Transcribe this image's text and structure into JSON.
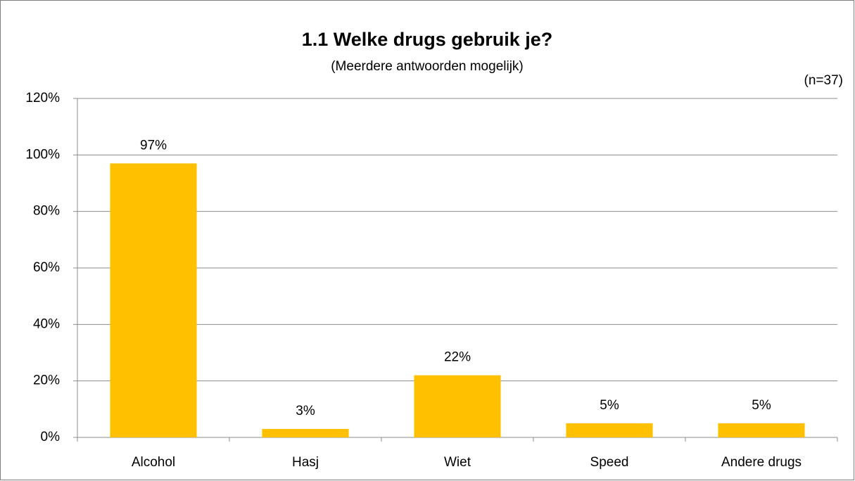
{
  "chart_data": {
    "type": "bar",
    "title": "1.1 Welke drugs gebruik je?",
    "subtitle": "(Meerdere antwoorden mogelijk)",
    "annotation": "(n=37)",
    "categories": [
      "Alcohol",
      "Hasj",
      "Wiet",
      "Speed",
      "Andere drugs"
    ],
    "values": [
      97,
      3,
      22,
      5,
      5
    ],
    "value_labels": [
      "97%",
      "3%",
      "22%",
      "5%",
      "5%"
    ],
    "color": "#ffc000",
    "ylim": [
      0,
      120
    ],
    "yticks": [
      {
        "value": 0,
        "label": "0%"
      },
      {
        "value": 20,
        "label": "20%"
      },
      {
        "value": 40,
        "label": "40%"
      },
      {
        "value": 60,
        "label": "60%"
      },
      {
        "value": 80,
        "label": "80%"
      },
      {
        "value": 100,
        "label": "100%"
      },
      {
        "value": 120,
        "label": "120%"
      }
    ],
    "grid": true
  }
}
